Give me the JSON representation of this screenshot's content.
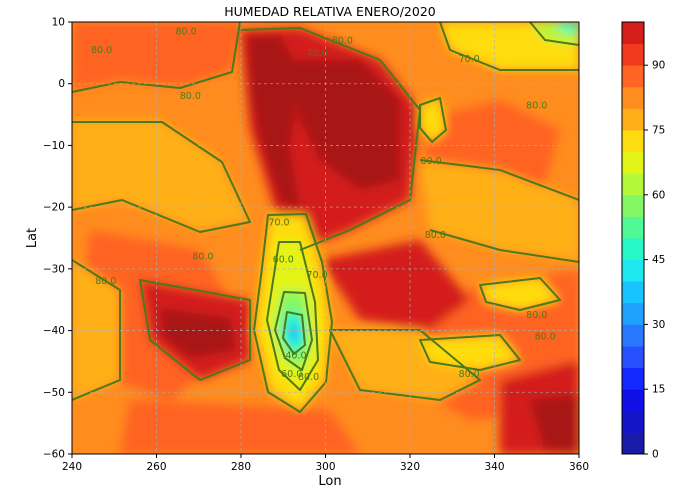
{
  "chart_data": {
    "type": "heatmap",
    "title": "HUMEDAD RELATIVA ENERO/2020",
    "xlabel": "Lon",
    "ylabel": "Lat",
    "xlim": [
      240,
      360
    ],
    "ylim": [
      -60,
      10
    ],
    "x_ticks": [
      "240",
      "260",
      "280",
      "300",
      "320",
      "340",
      "360"
    ],
    "y_ticks": [
      "10",
      "0",
      "−10",
      "−20",
      "−30",
      "−40",
      "−50",
      "−60"
    ],
    "grid": true,
    "colorbar": {
      "ticks": [
        "0",
        "15",
        "30",
        "45",
        "60",
        "75",
        "90"
      ],
      "range": [
        0,
        100
      ],
      "levels": [
        0,
        5,
        10,
        15,
        20,
        25,
        30,
        35,
        40,
        45,
        50,
        55,
        60,
        65,
        70,
        75,
        80,
        85,
        90,
        95,
        100
      ],
      "colors": [
        "#1a1aa8",
        "#1414c8",
        "#1010e6",
        "#1428ff",
        "#2850ff",
        "#2a78ff",
        "#1ea0ff",
        "#18c4ff",
        "#1ee8f0",
        "#28f8c8",
        "#50f896",
        "#84f864",
        "#b4f83a",
        "#e2f418",
        "#ffdc10",
        "#ffb018",
        "#ff8c1e",
        "#ff6422",
        "#f43a1e",
        "#d41e1a",
        "#a81818"
      ]
    },
    "contour_labels": [
      {
        "text": "80.0",
        "lon": 247,
        "lat": 5.5
      },
      {
        "text": "80.0",
        "lon": 267,
        "lat": 8.5
      },
      {
        "text": "70.0",
        "lon": 298,
        "lat": 5
      },
      {
        "text": "80.0",
        "lon": 304,
        "lat": 7
      },
      {
        "text": "70.0",
        "lon": 334,
        "lat": 4
      },
      {
        "text": "80.0",
        "lon": 268,
        "lat": -2
      },
      {
        "text": "80.0",
        "lon": 350,
        "lat": -3.5
      },
      {
        "text": "80.0",
        "lon": 325,
        "lat": -12.5
      },
      {
        "text": "70.0",
        "lon": 289,
        "lat": -22.5
      },
      {
        "text": "80.0",
        "lon": 326,
        "lat": -24.5
      },
      {
        "text": "80.0",
        "lon": 271,
        "lat": -28
      },
      {
        "text": "60.0",
        "lon": 290,
        "lat": -28.5
      },
      {
        "text": "70.0",
        "lon": 298,
        "lat": -31
      },
      {
        "text": "80.0",
        "lon": 248,
        "lat": -32
      },
      {
        "text": "80.0",
        "lon": 350,
        "lat": -37.5
      },
      {
        "text": "40.0",
        "lon": 293,
        "lat": -44
      },
      {
        "text": "60.0",
        "lon": 292,
        "lat": -47
      },
      {
        "text": "80.0",
        "lon": 296,
        "lat": -47.5
      },
      {
        "text": "80.0",
        "lon": 352,
        "lat": -41
      },
      {
        "text": "80.0",
        "lon": 334,
        "lat": -47
      }
    ]
  }
}
